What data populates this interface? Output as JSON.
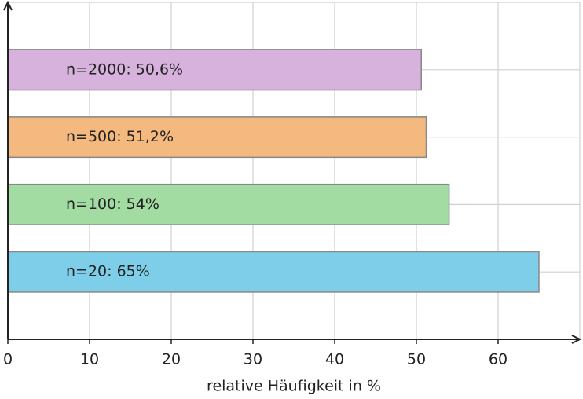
{
  "chart_data": {
    "type": "barh",
    "x_label": "relative Häufigkeit in %",
    "values": [
      65,
      54,
      51.2,
      50.6
    ],
    "value_labels": [
      "n=20: 65%",
      "n=100: 54%",
      "n=500: 51,2%",
      "n=2000: 50,6%"
    ],
    "colors": [
      "#7ecde9",
      "#a3dca3",
      "#f3b97f",
      "#d6b2dc"
    ],
    "xlim": [
      0,
      70
    ],
    "xticks": [
      0,
      10,
      20,
      30,
      40,
      50,
      60
    ],
    "grid": true
  }
}
